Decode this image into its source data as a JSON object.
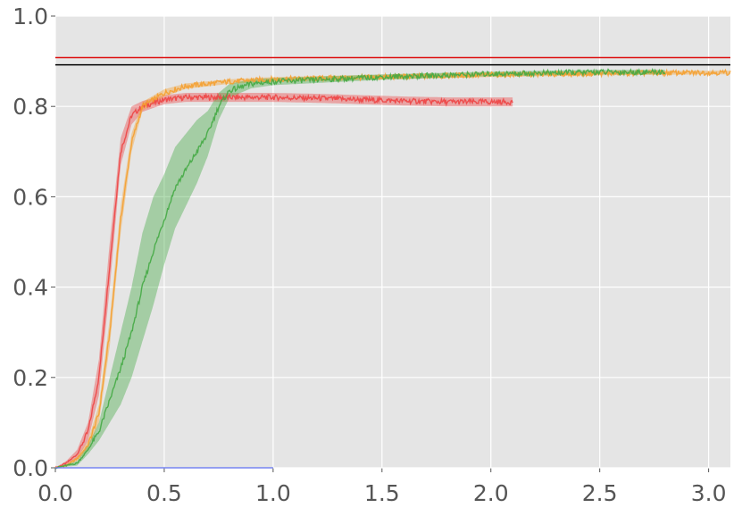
{
  "chart_data": {
    "type": "line",
    "title": "",
    "xlabel": "",
    "ylabel": "",
    "xlim": [
      0.0,
      3.1
    ],
    "ylim": [
      0.0,
      1.0
    ],
    "grid": true,
    "x_ticks": [
      "0.0",
      "0.5",
      "1.0",
      "1.5",
      "2.0",
      "2.5",
      "3.0"
    ],
    "y_ticks": [
      "0.0",
      "0.2",
      "0.4",
      "0.6",
      "0.8",
      "1.0"
    ],
    "reference_lines": [
      {
        "color": "#dd1111",
        "y": 0.908
      },
      {
        "color": "#000000",
        "y": 0.892
      }
    ],
    "series": [
      {
        "color": "#ee4444",
        "x": [
          0.0,
          0.05,
          0.1,
          0.15,
          0.2,
          0.25,
          0.3,
          0.35,
          0.4,
          0.5,
          0.6,
          0.8,
          1.0,
          1.2,
          1.4,
          1.6,
          1.8,
          2.0,
          2.1
        ],
        "y": [
          0.0,
          0.01,
          0.03,
          0.08,
          0.2,
          0.45,
          0.7,
          0.78,
          0.8,
          0.815,
          0.82,
          0.82,
          0.82,
          0.818,
          0.815,
          0.812,
          0.81,
          0.81,
          0.81
        ],
        "band": [
          0.0,
          0.005,
          0.01,
          0.02,
          0.04,
          0.05,
          0.03,
          0.02,
          0.012,
          0.01,
          0.01,
          0.01,
          0.01,
          0.01,
          0.01,
          0.01,
          0.01,
          0.01,
          0.01
        ]
      },
      {
        "color": "#f5a030",
        "x": [
          0.0,
          0.05,
          0.1,
          0.15,
          0.2,
          0.25,
          0.3,
          0.35,
          0.4,
          0.5,
          0.6,
          0.8,
          1.0,
          1.5,
          2.0,
          2.5,
          3.0,
          3.1
        ],
        "y": [
          0.0,
          0.005,
          0.02,
          0.05,
          0.12,
          0.3,
          0.55,
          0.72,
          0.8,
          0.83,
          0.845,
          0.855,
          0.86,
          0.865,
          0.87,
          0.873,
          0.875,
          0.875
        ],
        "band": [
          0.0,
          0.003,
          0.005,
          0.01,
          0.02,
          0.03,
          0.03,
          0.02,
          0.01,
          0.008,
          0.006,
          0.005,
          0.005,
          0.005,
          0.005,
          0.004,
          0.004,
          0.004
        ]
      },
      {
        "color": "#44aa44",
        "x": [
          0.0,
          0.1,
          0.15,
          0.2,
          0.25,
          0.3,
          0.35,
          0.4,
          0.45,
          0.5,
          0.55,
          0.6,
          0.65,
          0.7,
          0.75,
          0.8,
          0.9,
          1.0,
          1.5,
          2.0,
          2.5,
          2.8
        ],
        "y": [
          0.0,
          0.01,
          0.04,
          0.08,
          0.15,
          0.22,
          0.3,
          0.4,
          0.48,
          0.55,
          0.62,
          0.66,
          0.7,
          0.74,
          0.8,
          0.835,
          0.85,
          0.855,
          0.865,
          0.872,
          0.876,
          0.876
        ],
        "band": [
          0.0,
          0.005,
          0.01,
          0.02,
          0.05,
          0.08,
          0.1,
          0.12,
          0.12,
          0.1,
          0.09,
          0.08,
          0.07,
          0.05,
          0.03,
          0.015,
          0.01,
          0.008,
          0.006,
          0.005,
          0.005,
          0.005
        ]
      },
      {
        "color": "#6677ee",
        "x": [
          0.0,
          0.5,
          1.0
        ],
        "y": [
          0.0,
          0.0,
          0.0
        ],
        "band": [
          0.0,
          0.0,
          0.0
        ]
      }
    ]
  }
}
